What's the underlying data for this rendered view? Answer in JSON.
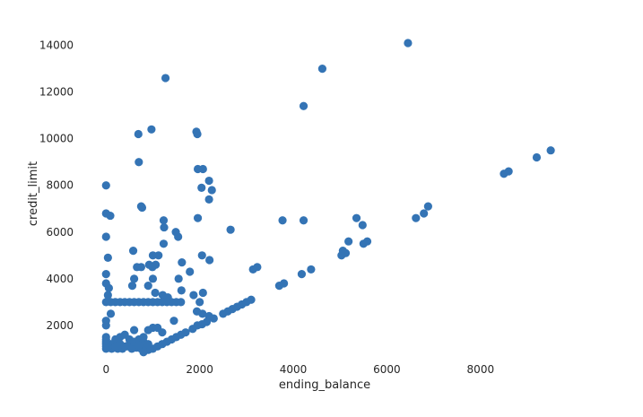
{
  "chart_data": {
    "type": "scatter",
    "title": "",
    "xlabel": "ending_balance",
    "ylabel": "credit_limit",
    "xlim": [
      -350,
      9900
    ],
    "ylim": [
      650,
      14600
    ],
    "grid": false,
    "marker_color": "#3474b5",
    "x_ticks": [
      0,
      2000,
      4000,
      6000,
      8000
    ],
    "y_ticks": [
      2000,
      4000,
      6000,
      8000,
      10000,
      12000,
      14000
    ],
    "x_tick_labels": [
      "0",
      "2000",
      "4000",
      "6000",
      "8000"
    ],
    "y_tick_labels": [
      "2000",
      "4000",
      "6000",
      "8000",
      "10000",
      "12000",
      "14000"
    ],
    "series": [
      {
        "points": [
          [
            6450,
            14100
          ],
          [
            4620,
            13000
          ],
          [
            1270,
            12600
          ],
          [
            4220,
            11400
          ],
          [
            970,
            10400
          ],
          [
            690,
            10200
          ],
          [
            1930,
            10300
          ],
          [
            1950,
            10200
          ],
          [
            700,
            9000
          ],
          [
            9500,
            9500
          ],
          [
            9200,
            9200
          ],
          [
            8600,
            8600
          ],
          [
            8500,
            8500
          ],
          [
            1960,
            8700
          ],
          [
            2070,
            8700
          ],
          [
            2200,
            8200
          ],
          [
            2040,
            7900
          ],
          [
            2260,
            7800
          ],
          [
            2200,
            7400
          ],
          [
            6880,
            7100
          ],
          [
            6790,
            6800
          ],
          [
            750,
            7100
          ],
          [
            770,
            7050
          ],
          [
            0,
            8000
          ],
          [
            0,
            6800
          ],
          [
            90,
            6700
          ],
          [
            0,
            5800
          ],
          [
            40,
            4900
          ],
          [
            0,
            4200
          ],
          [
            0,
            3800
          ],
          [
            60,
            3600
          ],
          [
            40,
            3300
          ],
          [
            0,
            3000
          ],
          [
            100,
            2500
          ],
          [
            0,
            2200
          ],
          [
            0,
            2000
          ],
          [
            1230,
            6500
          ],
          [
            1240,
            6200
          ],
          [
            1230,
            5500
          ],
          [
            1490,
            6000
          ],
          [
            1540,
            5800
          ],
          [
            1120,
            5000
          ],
          [
            1000,
            5000
          ],
          [
            580,
            5200
          ],
          [
            660,
            4500
          ],
          [
            750,
            4500
          ],
          [
            920,
            4600
          ],
          [
            990,
            4500
          ],
          [
            1060,
            4600
          ],
          [
            1620,
            4700
          ],
          [
            1790,
            4300
          ],
          [
            1550,
            4000
          ],
          [
            1610,
            3500
          ],
          [
            600,
            4000
          ],
          [
            1000,
            4000
          ],
          [
            560,
            3700
          ],
          [
            900,
            3700
          ],
          [
            1050,
            3400
          ],
          [
            1210,
            3300
          ],
          [
            1870,
            3300
          ],
          [
            2070,
            3400
          ],
          [
            1940,
            2600
          ],
          [
            2060,
            2500
          ],
          [
            1450,
            2200
          ],
          [
            1320,
            3200
          ],
          [
            2050,
            5000
          ],
          [
            2210,
            4800
          ],
          [
            1960,
            6600
          ],
          [
            2660,
            6100
          ],
          [
            3770,
            6500
          ],
          [
            4220,
            6500
          ],
          [
            5350,
            6600
          ],
          [
            5480,
            6300
          ],
          [
            5180,
            5600
          ],
          [
            5580,
            5600
          ],
          [
            5500,
            5500
          ],
          [
            5060,
            5200
          ],
          [
            5120,
            5100
          ],
          [
            5030,
            5000
          ],
          [
            6620,
            6600
          ],
          [
            3140,
            4400
          ],
          [
            3230,
            4500
          ],
          [
            4380,
            4400
          ],
          [
            4180,
            4200
          ],
          [
            3700,
            3700
          ],
          [
            3800,
            3800
          ],
          [
            2000,
            3000
          ],
          [
            2600,
            2600
          ],
          [
            2700,
            2700
          ],
          [
            2800,
            2800
          ],
          [
            2900,
            2900
          ],
          [
            3000,
            3000
          ],
          [
            3100,
            3100
          ],
          [
            2500,
            2500
          ],
          [
            2300,
            2300
          ],
          [
            2200,
            2400
          ],
          [
            2150,
            2150
          ],
          [
            2050,
            2050
          ],
          [
            1950,
            2000
          ],
          [
            1850,
            1850
          ],
          [
            1700,
            1700
          ],
          [
            1600,
            1600
          ],
          [
            1500,
            1500
          ],
          [
            1400,
            1400
          ],
          [
            1300,
            1300
          ],
          [
            1200,
            1200
          ],
          [
            1100,
            1100
          ],
          [
            1000,
            1000
          ],
          [
            900,
            950
          ],
          [
            800,
            850
          ],
          [
            1000,
            1900
          ],
          [
            1100,
            1900
          ],
          [
            900,
            1800
          ],
          [
            1200,
            1700
          ],
          [
            600,
            1800
          ],
          [
            400,
            1600
          ],
          [
            300,
            1500
          ],
          [
            200,
            1400
          ],
          [
            700,
            1400
          ],
          [
            800,
            1300
          ],
          [
            500,
            1200
          ],
          [
            100,
            1200
          ],
          [
            0,
            1500
          ],
          [
            0,
            1400
          ],
          [
            0,
            1300
          ],
          [
            0,
            1200
          ],
          [
            0,
            1100
          ],
          [
            0,
            1000
          ],
          [
            60,
            1050
          ],
          [
            120,
            1000
          ],
          [
            180,
            1050
          ],
          [
            250,
            1000
          ],
          [
            350,
            1000
          ],
          [
            450,
            1100
          ],
          [
            550,
            1000
          ],
          [
            650,
            1050
          ],
          [
            750,
            1000
          ],
          [
            850,
            1100
          ],
          [
            950,
            1000
          ],
          [
            300,
            1200
          ],
          [
            400,
            1100
          ],
          [
            600,
            1300
          ],
          [
            700,
            1150
          ],
          [
            200,
            1100
          ],
          [
            500,
            1400
          ],
          [
            800,
            1500
          ],
          [
            900,
            1200
          ],
          [
            100,
            3000
          ],
          [
            200,
            3000
          ],
          [
            300,
            3000
          ],
          [
            400,
            3000
          ],
          [
            500,
            3000
          ],
          [
            600,
            3000
          ],
          [
            700,
            3000
          ],
          [
            800,
            3000
          ],
          [
            900,
            3000
          ],
          [
            1000,
            3000
          ],
          [
            1100,
            3000
          ],
          [
            1200,
            3000
          ],
          [
            1300,
            3000
          ],
          [
            1400,
            3000
          ],
          [
            1500,
            3000
          ],
          [
            1600,
            3000
          ]
        ]
      }
    ]
  }
}
